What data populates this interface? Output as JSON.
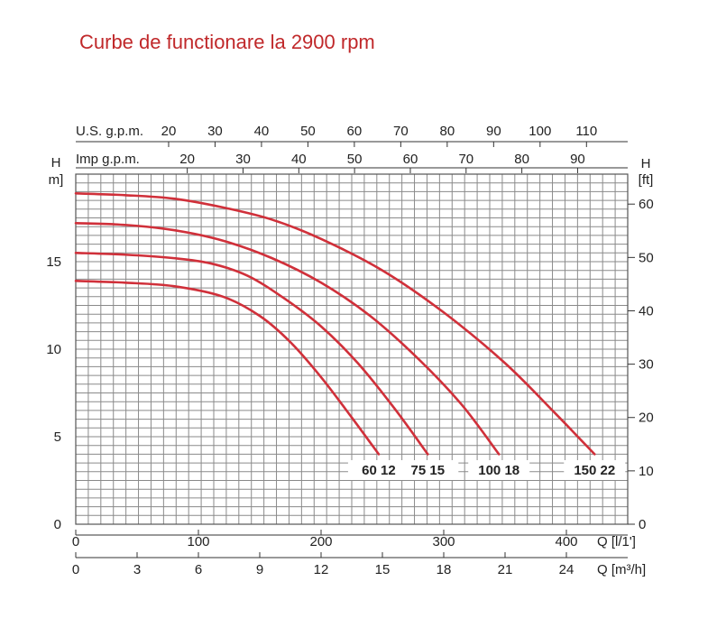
{
  "title": "Curbe de functionare la 2900 rpm",
  "chart_data": {
    "type": "line",
    "x_axis_bottom_1": {
      "label": "Q [l/1']",
      "ticks": [
        0,
        100,
        200,
        300,
        400
      ],
      "range": [
        0,
        450
      ]
    },
    "x_axis_bottom_2": {
      "label": "Q [m³/h]",
      "ticks": [
        0,
        3,
        6,
        9,
        12,
        15,
        18,
        21,
        24
      ],
      "range": [
        0,
        27
      ]
    },
    "x_axis_top_1": {
      "label": "U.S. g.p.m.",
      "ticks": [
        20,
        30,
        40,
        50,
        60,
        70,
        80,
        90,
        100,
        110
      ]
    },
    "x_axis_top_2": {
      "label": "Imp g.p.m.",
      "ticks": [
        20,
        30,
        40,
        50,
        60,
        70,
        80,
        90
      ]
    },
    "y_axis_left": {
      "label_top": "H",
      "label_unit": "m]",
      "ticks": [
        0,
        5,
        10,
        15
      ],
      "range": [
        0,
        20
      ]
    },
    "y_axis_right": {
      "label_top": "H",
      "label_unit": "[ft]",
      "ticks": [
        0,
        10,
        20,
        30,
        40,
        50,
        60
      ]
    },
    "grid": true,
    "series": [
      {
        "name": "60 12",
        "color": "#d0303a",
        "points": [
          [
            0,
            13.9
          ],
          [
            40,
            13.8
          ],
          [
            80,
            13.6
          ],
          [
            120,
            13.0
          ],
          [
            150,
            11.9
          ],
          [
            175,
            10.4
          ],
          [
            200,
            8.4
          ],
          [
            225,
            6.1
          ],
          [
            247,
            4.0
          ]
        ]
      },
      {
        "name": "75 15",
        "color": "#d0303a",
        "points": [
          [
            0,
            15.5
          ],
          [
            40,
            15.4
          ],
          [
            80,
            15.2
          ],
          [
            110,
            14.9
          ],
          [
            140,
            14.2
          ],
          [
            170,
            12.9
          ],
          [
            200,
            11.3
          ],
          [
            230,
            9.2
          ],
          [
            260,
            6.6
          ],
          [
            287,
            4.0
          ]
        ]
      },
      {
        "name": "100 18",
        "color": "#d0303a",
        "points": [
          [
            0,
            17.2
          ],
          [
            40,
            17.1
          ],
          [
            80,
            16.8
          ],
          [
            120,
            16.2
          ],
          [
            160,
            15.2
          ],
          [
            200,
            13.8
          ],
          [
            240,
            11.9
          ],
          [
            280,
            9.4
          ],
          [
            315,
            6.8
          ],
          [
            345,
            4.0
          ]
        ]
      },
      {
        "name": "150 22",
        "color": "#d0303a",
        "points": [
          [
            0,
            18.9
          ],
          [
            40,
            18.8
          ],
          [
            80,
            18.6
          ],
          [
            120,
            18.1
          ],
          [
            160,
            17.4
          ],
          [
            200,
            16.3
          ],
          [
            250,
            14.5
          ],
          [
            300,
            12.1
          ],
          [
            350,
            9.2
          ],
          [
            390,
            6.4
          ],
          [
            423,
            4.0
          ]
        ]
      }
    ]
  }
}
